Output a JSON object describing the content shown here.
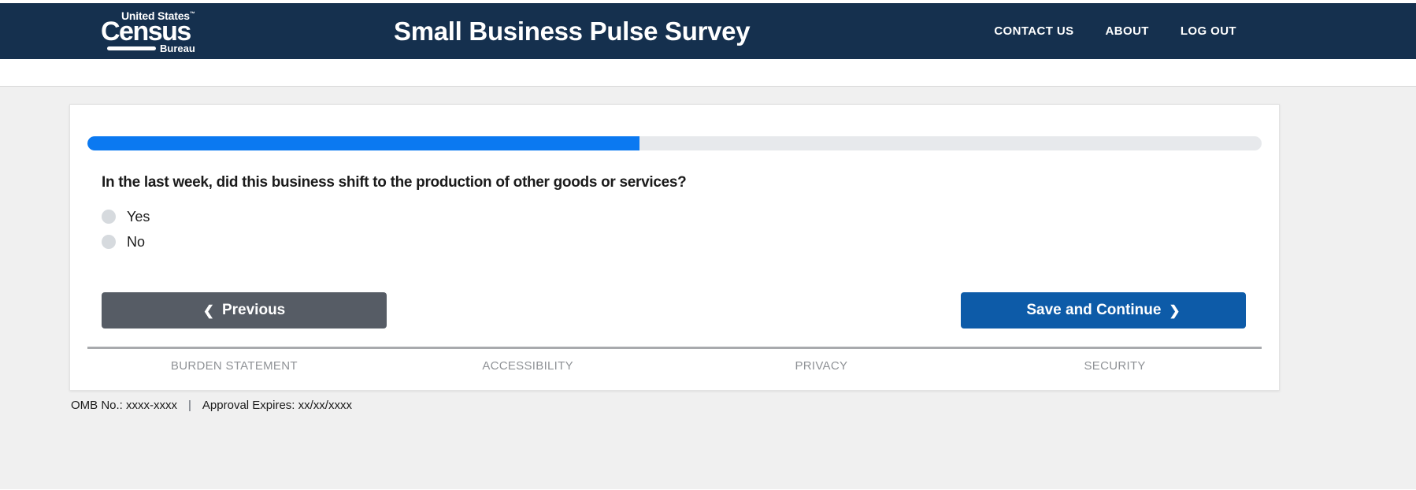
{
  "header": {
    "logo": {
      "line1": "United States",
      "tm": "™",
      "line2": "Census",
      "line3": "Bureau"
    },
    "title": "Small Business Pulse Survey",
    "nav": [
      {
        "label": "CONTACT US"
      },
      {
        "label": "ABOUT"
      },
      {
        "label": "LOG OUT"
      }
    ]
  },
  "survey": {
    "progress_percent": 47,
    "question": "In the last week, did this business shift to the production of other goods or services?",
    "options": [
      {
        "label": "Yes",
        "selected": false
      },
      {
        "label": "No",
        "selected": false
      }
    ],
    "previous_label": "Previous",
    "save_label": "Save and Continue"
  },
  "icons": {
    "chevron_left": "❮",
    "chevron_right": "❯"
  },
  "footer": {
    "links": [
      "BURDEN STATEMENT",
      "ACCESSIBILITY",
      "PRIVACY",
      "SECURITY"
    ],
    "omb": "OMB No.: xxxx-xxxx",
    "separator": "|",
    "approval": "Approval Expires: xx/xx/xxxx"
  },
  "colors": {
    "header_navy": "#15304e",
    "progress_fill": "#0b79f1",
    "progress_track": "#e7e9ec",
    "previous_button": "#565c65",
    "save_button": "#0d5ba8",
    "footer_link_gray": "#8f9296",
    "page_background": "#f0f0f0"
  }
}
